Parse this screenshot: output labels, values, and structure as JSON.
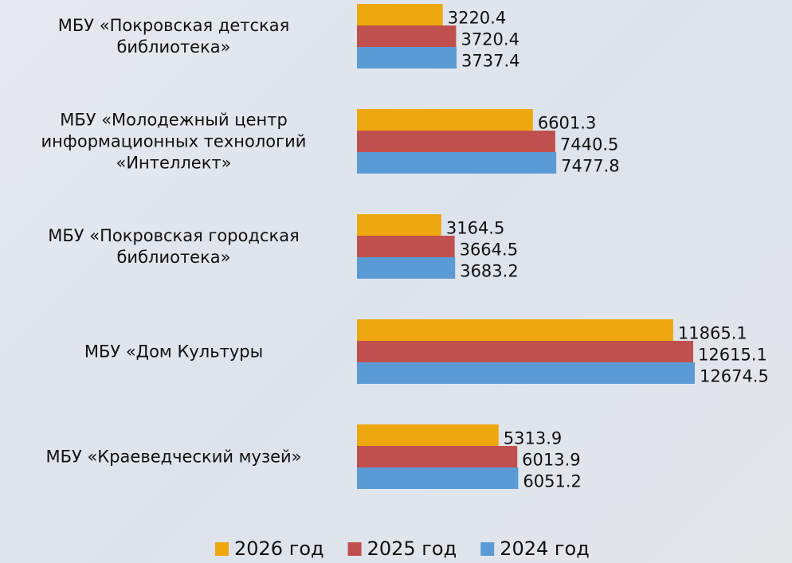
{
  "chart_data": {
    "type": "hbar",
    "categories": [
      "МБУ «Покровская детская библиотека»",
      "МБУ «Молодежный центр информационных технологий «Интеллект»",
      "МБУ «Покровская городская библиотека»",
      "МБУ «Дом Культуры",
      "МБУ «Краеведческий музей»"
    ],
    "series": [
      {
        "name": "2026 год",
        "color": "#eea70e",
        "values": [
          3220.4,
          6601.3,
          3164.5,
          11865.1,
          5313.9
        ]
      },
      {
        "name": "2025 год",
        "color": "#c0504d",
        "values": [
          3720.4,
          7440.5,
          3664.5,
          12615.1,
          6013.9
        ]
      },
      {
        "name": "2024 год",
        "color": "#5b9bd5",
        "values": [
          3737.4,
          7477.8,
          3683.2,
          12674.5,
          6051.2
        ]
      }
    ],
    "legend": "bottom"
  }
}
